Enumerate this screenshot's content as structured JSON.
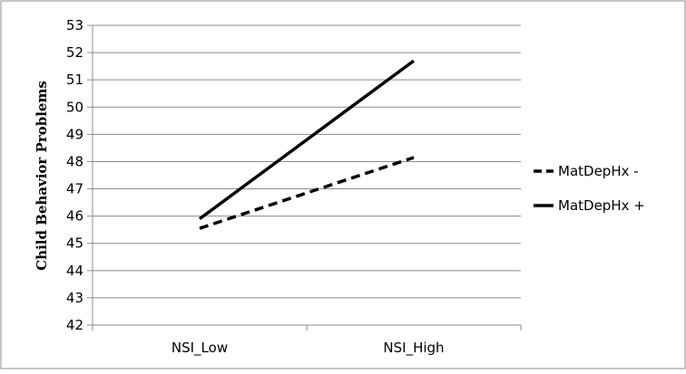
{
  "chart_data": {
    "type": "line",
    "categories": [
      "NSI_Low",
      "NSI_High"
    ],
    "series": [
      {
        "name": "MatDepHx -",
        "values": [
          45.55,
          48.15
        ],
        "line_style": "dashed",
        "color": "#000000"
      },
      {
        "name": "MatDepHx +",
        "values": [
          45.9,
          51.7
        ],
        "line_style": "solid",
        "color": "#000000"
      }
    ],
    "title": "",
    "xlabel": "",
    "ylabel": "Child Behavior Problems",
    "ylim": [
      42,
      53
    ],
    "yticks": [
      42,
      43,
      44,
      45,
      46,
      47,
      48,
      49,
      50,
      51,
      52,
      53
    ],
    "grid": "horizontal",
    "legend_position": "right",
    "border_color": "#8c8c8c",
    "gridline_color": "#8c8c8c"
  }
}
